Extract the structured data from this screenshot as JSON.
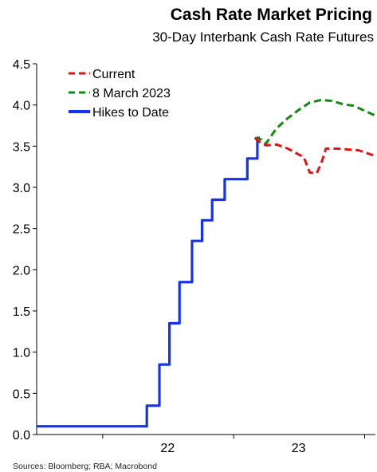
{
  "header": {
    "title": "Cash Rate Market Pricing",
    "subtitle": "30-Day Interbank Cash Rate Futures"
  },
  "footer": {
    "source": "Sources: Bloomberg; RBA; Macrobond"
  },
  "colors": {
    "current": "#e3140f",
    "march": "#128a12",
    "hikes": "#1432f0",
    "axis": "#000000"
  },
  "chart_data": {
    "type": "line",
    "title": "Cash Rate Market Pricing",
    "subtitle": "30-Day Interbank Cash Rate Futures",
    "xlabel": "",
    "ylabel": "",
    "x_axis": {
      "range": [
        "2021-07-01",
        "2024-01-31"
      ],
      "tick_labels": [
        {
          "label": "22",
          "x": "2022-07-01"
        },
        {
          "label": "23",
          "x": "2023-07-01"
        }
      ],
      "year_boundaries": [
        "2022-01-01",
        "2023-01-01",
        "2024-01-01"
      ]
    },
    "ylim": [
      0,
      4.5
    ],
    "yticks": [
      0.0,
      0.5,
      1.0,
      1.5,
      2.0,
      2.5,
      3.0,
      3.5,
      4.0,
      4.5
    ],
    "ytick_labels": [
      "0.0",
      "0.5",
      "1.0",
      "1.5",
      "2.0",
      "2.5",
      "3.0",
      "3.5",
      "4.0",
      "4.5"
    ],
    "grid": false,
    "legend_position": "top-left",
    "series": [
      {
        "name": "Current",
        "style": "dashed",
        "color": "#e3140f",
        "points": [
          [
            "2023-03-01",
            3.6
          ],
          [
            "2023-03-15",
            3.55
          ],
          [
            "2023-04-01",
            3.51
          ],
          [
            "2023-05-01",
            3.52
          ],
          [
            "2023-06-01",
            3.47
          ],
          [
            "2023-07-01",
            3.4
          ],
          [
            "2023-07-15",
            3.37
          ],
          [
            "2023-08-01",
            3.18
          ],
          [
            "2023-08-20",
            3.17
          ],
          [
            "2023-09-01",
            3.28
          ],
          [
            "2023-09-15",
            3.47
          ],
          [
            "2023-10-15",
            3.47
          ],
          [
            "2023-11-15",
            3.46
          ],
          [
            "2023-12-15",
            3.45
          ],
          [
            "2024-01-31",
            3.38
          ]
        ]
      },
      {
        "name": "8 March 2023",
        "style": "dashed",
        "color": "#128a12",
        "points": [
          [
            "2023-03-01",
            3.6
          ],
          [
            "2023-03-20",
            3.58
          ],
          [
            "2023-04-01",
            3.53
          ],
          [
            "2023-04-15",
            3.62
          ],
          [
            "2023-05-01",
            3.72
          ],
          [
            "2023-06-01",
            3.84
          ],
          [
            "2023-07-01",
            3.94
          ],
          [
            "2023-08-01",
            4.03
          ],
          [
            "2023-09-01",
            4.06
          ],
          [
            "2023-10-01",
            4.05
          ],
          [
            "2023-11-01",
            4.01
          ],
          [
            "2023-12-01",
            3.99
          ],
          [
            "2024-01-01",
            3.93
          ],
          [
            "2024-01-31",
            3.87
          ]
        ]
      },
      {
        "name": "Hikes to Date",
        "style": "solid",
        "color": "#1432f0",
        "steps": [
          [
            "2021-07-01",
            0.1
          ],
          [
            "2022-05-04",
            0.35
          ],
          [
            "2022-06-08",
            0.85
          ],
          [
            "2022-07-06",
            1.35
          ],
          [
            "2022-08-03",
            1.85
          ],
          [
            "2022-09-07",
            2.35
          ],
          [
            "2022-10-05",
            2.6
          ],
          [
            "2022-11-02",
            2.85
          ],
          [
            "2022-12-07",
            3.1
          ],
          [
            "2023-02-08",
            3.35
          ],
          [
            "2023-03-08",
            3.6
          ]
        ],
        "end": "2023-03-15"
      }
    ]
  }
}
